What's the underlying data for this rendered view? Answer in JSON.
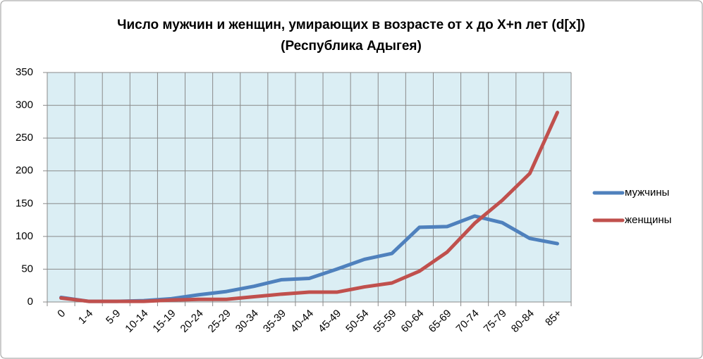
{
  "chart_data": {
    "type": "line",
    "title": [
      "Число мужчин и женщин, умирающих в возрасте от x до X+n лет  (d[x])",
      "(Республика Адыгея)"
    ],
    "categories": [
      "0",
      "1-4",
      "5-9",
      "10-14",
      "15-19",
      "20-24",
      "25-29",
      "30-34",
      "35-39",
      "40-44",
      "45-49",
      "50-54",
      "55-59",
      "60-64",
      "65-69",
      "70-74",
      "75-79",
      "80-84",
      "85+"
    ],
    "series": [
      {
        "name": "мужчины",
        "color": "#4f81bd",
        "values": [
          7,
          1,
          1,
          2,
          5,
          11,
          16,
          24,
          34,
          36,
          50,
          65,
          74,
          114,
          115,
          131,
          121,
          97,
          89
        ]
      },
      {
        "name": "женщины",
        "color": "#c0504d",
        "values": [
          6,
          1,
          1,
          1,
          3,
          4,
          4,
          8,
          12,
          15,
          15,
          23,
          29,
          47,
          76,
          120,
          155,
          196,
          289
        ]
      }
    ],
    "ylim": [
      0,
      350
    ],
    "yticks": [
      0,
      50,
      100,
      150,
      200,
      250,
      300,
      350
    ],
    "grid": true,
    "legend": "right"
  }
}
